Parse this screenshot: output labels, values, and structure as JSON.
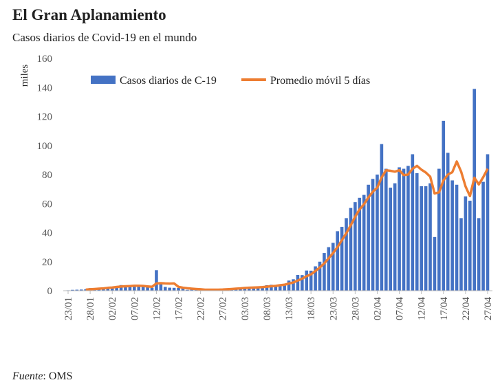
{
  "chart_data": {
    "type": "bar_line",
    "title": "El Gran Aplanamiento",
    "subtitle": "Casos diarios de Covid-19 en el mundo",
    "y_axis_label": "miles",
    "source_label": "Fuente",
    "source": ": OMS",
    "categories": [
      "23/01",
      null,
      null,
      null,
      null,
      "28/01",
      null,
      null,
      null,
      null,
      "02/02",
      null,
      null,
      null,
      null,
      "07/02",
      null,
      null,
      null,
      null,
      "12/02",
      null,
      null,
      null,
      null,
      "17/02",
      null,
      null,
      null,
      null,
      "22/02",
      null,
      null,
      null,
      null,
      "27/02",
      null,
      null,
      null,
      null,
      "03/03",
      null,
      null,
      null,
      null,
      "08/03",
      null,
      null,
      null,
      null,
      "13/03",
      null,
      null,
      null,
      null,
      "18/03",
      null,
      null,
      null,
      null,
      "23/03",
      null,
      null,
      null,
      null,
      "28/03",
      null,
      null,
      null,
      null,
      "02/04",
      null,
      null,
      null,
      null,
      "07/04",
      null,
      null,
      null,
      null,
      "12/04",
      null,
      null,
      null,
      null,
      "17/04",
      null,
      null,
      null,
      null,
      "22/04",
      null,
      null,
      null,
      null,
      "27/04"
    ],
    "series": [
      {
        "name": "Casos diarios de C-19",
        "kind": "bar",
        "color": "#4472c4",
        "values": [
          0.3,
          0.6,
          0.7,
          0.8,
          1.0,
          1.8,
          1.5,
          2.0,
          2.1,
          2.6,
          2.8,
          3.2,
          3.9,
          3.7,
          3.2,
          3.4,
          2.7,
          3.0,
          2.5,
          2.0,
          14.1,
          5.1,
          2.6,
          2.1,
          2.0,
          1.9,
          1.7,
          0.6,
          0.9,
          1.0,
          0.8,
          0.4,
          0.6,
          0.9,
          0.9,
          1.2,
          1.4,
          1.8,
          1.8,
          1.9,
          2.2,
          2.6,
          2.3,
          2.4,
          2.8,
          3.8,
          4.1,
          3.7,
          4.5,
          4.5,
          7.0,
          7.9,
          10.9,
          10.8,
          13.9,
          13.8,
          16.8,
          20,
          26,
          30,
          33,
          41,
          44,
          50,
          57,
          61,
          64,
          66,
          73,
          77,
          80,
          101,
          84,
          71,
          74,
          85,
          84,
          86,
          94,
          81,
          72,
          72,
          74,
          37,
          84,
          117,
          95,
          76,
          73,
          50,
          65,
          62,
          139,
          50,
          75,
          94
        ]
      },
      {
        "name": "Promedio móvil 5 días",
        "kind": "line",
        "color": "#ed7d31",
        "values": [
          null,
          null,
          null,
          null,
          0.7,
          1.0,
          1.2,
          1.4,
          1.6,
          2.0,
          2.2,
          2.6,
          2.9,
          3.1,
          3.2,
          3.4,
          3.4,
          3.3,
          3.0,
          2.7,
          5.0,
          5.2,
          5.0,
          4.9,
          5.0,
          2.7,
          2.1,
          1.7,
          1.4,
          1.2,
          1.0,
          0.7,
          0.7,
          0.7,
          0.7,
          0.8,
          1.0,
          1.2,
          1.4,
          1.6,
          1.9,
          2.1,
          2.2,
          2.3,
          2.5,
          2.8,
          3.1,
          3.3,
          3.8,
          4.1,
          4.9,
          5.7,
          7.0,
          8.3,
          10.0,
          11.3,
          13.6,
          16.0,
          18.8,
          22.3,
          26.0,
          30.0,
          34.8,
          39.6,
          45.0,
          51.0,
          56.0,
          59.6,
          64.2,
          68.2,
          71.0,
          78.0,
          83.0,
          82.6,
          82.0,
          83.0,
          79.6,
          80.0,
          84.0,
          86.0,
          83.4,
          81.4,
          78.6,
          67.0,
          67.8,
          76.0,
          80.0,
          81.6,
          89.0,
          82.0,
          71.8,
          65.2,
          77.8,
          73.2,
          78.2,
          84.0
        ]
      }
    ],
    "ylim": [
      0,
      160
    ],
    "yticks": [
      0,
      20,
      40,
      60,
      80,
      100,
      120,
      140,
      160
    ],
    "grid": false,
    "legend": "top"
  }
}
